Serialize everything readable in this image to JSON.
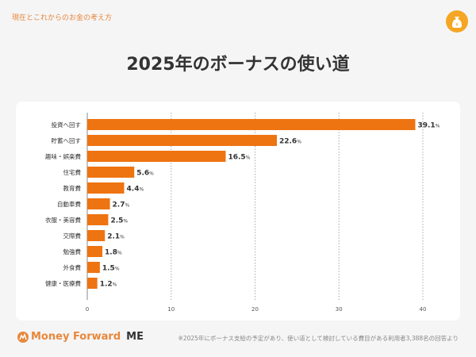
{
  "header": {
    "subtitle": "現在とこれからのお金の考え方",
    "icon": "money-bag-yen-icon"
  },
  "chart_data": {
    "type": "bar",
    "orientation": "horizontal",
    "title": "2025年のボーナスの使い道",
    "categories": [
      "投資へ回す",
      "貯蓄へ回す",
      "趣味・娯楽費",
      "住宅費",
      "教育費",
      "自動車費",
      "衣服・美容費",
      "交際費",
      "勉強費",
      "外食費",
      "健康・医療費"
    ],
    "values": [
      39.1,
      22.6,
      16.5,
      5.6,
      4.4,
      2.7,
      2.5,
      2.1,
      1.8,
      1.5,
      1.2
    ],
    "unit": "%",
    "xlim": [
      0,
      40
    ],
    "xticks": [
      0,
      10,
      20,
      30,
      40
    ],
    "grid": "vertical dotted",
    "bar_color": "#ee7411"
  },
  "footer": {
    "logo_main": "Money Forward",
    "logo_me": "ME",
    "note": "※2025年にボーナス支給の予定があり、使い道として検討している費目がある利用者3,388名の回答より"
  }
}
